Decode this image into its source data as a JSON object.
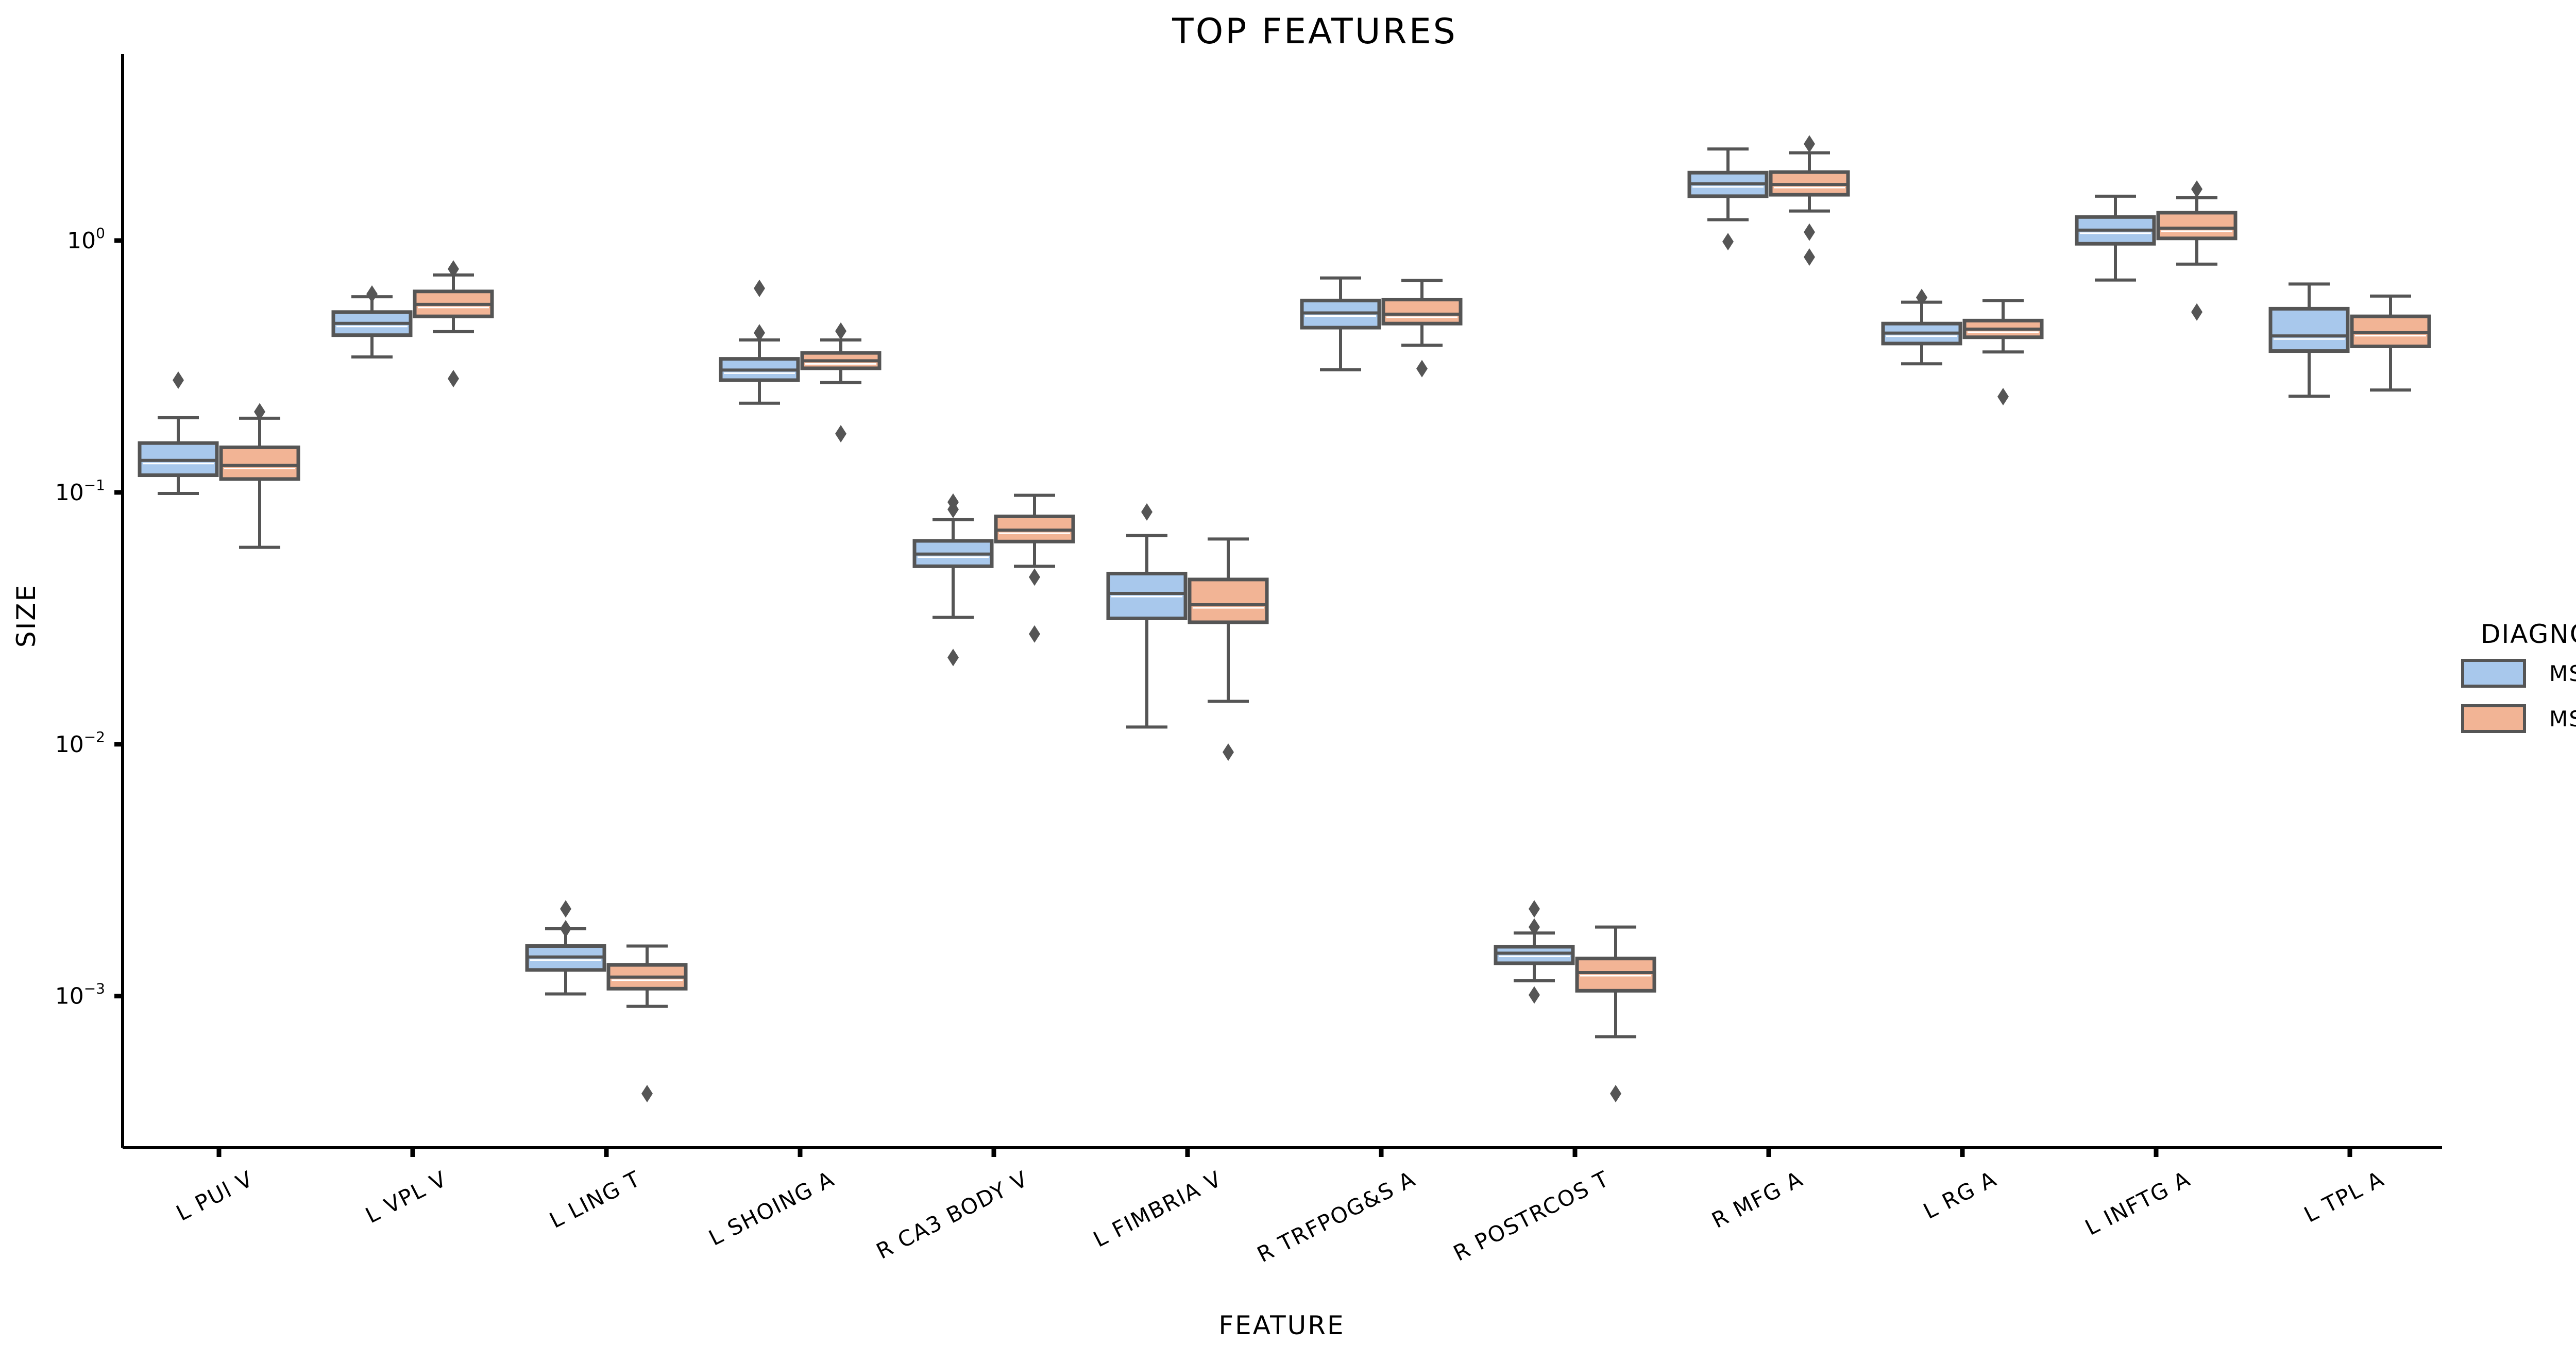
{
  "chart_data": {
    "type": "box",
    "title": "TOP FEATURES",
    "xlabel": "FEATURE",
    "ylabel": "SIZE",
    "yscale": "log",
    "ylim": [
      0.00025,
      5.5
    ],
    "yticks": [
      {
        "value": 1,
        "base": "10",
        "exp": "0"
      },
      {
        "value": 0.1,
        "base": "10",
        "exp": "−1"
      },
      {
        "value": 0.01,
        "base": "10",
        "exp": "−2"
      },
      {
        "value": 0.001,
        "base": "10",
        "exp": "−3"
      }
    ],
    "categories": [
      "L PUl V",
      "L VPL V",
      "L LING T",
      "L SHOING A",
      "R CA3 BODY V",
      "L FIMBRIA V",
      "R TRFPOG&S A",
      "R POSTRCOS T",
      "R MFG A",
      "L RG A",
      "L INFTG A",
      "L TPL A"
    ],
    "legend": {
      "title": "DIAGNOSIS",
      "position": "right"
    },
    "series": [
      {
        "name": "MS-TN",
        "color": "#a8c8ec",
        "boxes": [
          {
            "whislo": 0.099,
            "q1": 0.117,
            "med": 0.134,
            "q3": 0.157,
            "whishi": 0.198,
            "fliers": [
              0.279
            ]
          },
          {
            "whislo": 0.345,
            "q1": 0.421,
            "med": 0.469,
            "q3": 0.52,
            "whishi": 0.598,
            "fliers": [
              0.613
            ]
          },
          {
            "whislo": 0.00102,
            "q1": 0.00127,
            "med": 0.00143,
            "q3": 0.00158,
            "whishi": 0.00185,
            "fliers": [
              0.00185,
              0.00222
            ]
          },
          {
            "whislo": 0.226,
            "q1": 0.279,
            "med": 0.306,
            "q3": 0.339,
            "whishi": 0.403,
            "fliers": [
              0.43,
              0.646
            ]
          },
          {
            "whislo": 0.0319,
            "q1": 0.0509,
            "med": 0.0569,
            "q3": 0.0642,
            "whishi": 0.0779,
            "fliers": [
              0.0856,
              0.0915,
              0.0221
            ]
          },
          {
            "whislo": 0.0117,
            "q1": 0.0316,
            "med": 0.0397,
            "q3": 0.0476,
            "whishi": 0.0674,
            "fliers": [
              0.0836
            ]
          },
          {
            "whislo": 0.307,
            "q1": 0.451,
            "med": 0.516,
            "q3": 0.578,
            "whishi": 0.71,
            "fliers": []
          },
          {
            "whislo": 0.00115,
            "q1": 0.00135,
            "med": 0.00148,
            "q3": 0.00157,
            "whishi": 0.00178,
            "fliers": [
              0.00188,
              0.00222,
              0.00101
            ]
          },
          {
            "whislo": 1.21,
            "q1": 1.5,
            "med": 1.68,
            "q3": 1.86,
            "whishi": 2.31,
            "fliers": [
              0.99
            ]
          },
          {
            "whislo": 0.324,
            "q1": 0.39,
            "med": 0.429,
            "q3": 0.468,
            "whishi": 0.569,
            "fliers": [
              0.594
            ]
          },
          {
            "whislo": 0.697,
            "q1": 0.971,
            "med": 1.1,
            "q3": 1.24,
            "whishi": 1.5,
            "fliers": []
          },
          {
            "whislo": 0.241,
            "q1": 0.364,
            "med": 0.418,
            "q3": 0.536,
            "whishi": 0.672,
            "fliers": []
          }
        ]
      },
      {
        "name": "MS",
        "color": "#f2b495",
        "boxes": [
          {
            "whislo": 0.0605,
            "q1": 0.113,
            "med": 0.128,
            "q3": 0.151,
            "whishi": 0.197,
            "fliers": [
              0.209
            ]
          },
          {
            "whislo": 0.435,
            "q1": 0.5,
            "med": 0.558,
            "q3": 0.628,
            "whishi": 0.73,
            "fliers": [
              0.771,
              0.283
            ]
          },
          {
            "whislo": 0.00091,
            "q1": 0.00107,
            "med": 0.00119,
            "q3": 0.00133,
            "whishi": 0.00158,
            "fliers": [
              0.00041
            ]
          },
          {
            "whislo": 0.273,
            "q1": 0.311,
            "med": 0.333,
            "q3": 0.358,
            "whishi": 0.403,
            "fliers": [
              0.437,
              0.171
            ]
          },
          {
            "whislo": 0.0509,
            "q1": 0.0638,
            "med": 0.0708,
            "q3": 0.0803,
            "whishi": 0.0974,
            "fliers": [
              0.0461,
              0.0274
            ]
          },
          {
            "whislo": 0.0148,
            "q1": 0.0305,
            "med": 0.0358,
            "q3": 0.0451,
            "whishi": 0.0653,
            "fliers": [
              0.0093
            ]
          },
          {
            "whislo": 0.384,
            "q1": 0.468,
            "med": 0.51,
            "q3": 0.583,
            "whishi": 0.695,
            "fliers": [
              0.31
            ]
          },
          {
            "whislo": 0.00069,
            "q1": 0.00105,
            "med": 0.00124,
            "q3": 0.00141,
            "whishi": 0.00188,
            "fliers": [
              0.00041
            ]
          },
          {
            "whislo": 1.31,
            "q1": 1.52,
            "med": 1.67,
            "q3": 1.87,
            "whishi": 2.23,
            "fliers": [
              2.42,
              1.08,
              0.86
            ]
          },
          {
            "whislo": 0.361,
            "q1": 0.413,
            "med": 0.445,
            "q3": 0.481,
            "whishi": 0.578,
            "fliers": [
              0.24
            ]
          },
          {
            "whislo": 0.806,
            "q1": 1.02,
            "med": 1.12,
            "q3": 1.29,
            "whishi": 1.48,
            "fliers": [
              1.6,
              0.52
            ]
          },
          {
            "whislo": 0.255,
            "q1": 0.38,
            "med": 0.431,
            "q3": 0.5,
            "whishi": 0.602,
            "fliers": []
          }
        ]
      }
    ],
    "grid": false
  }
}
